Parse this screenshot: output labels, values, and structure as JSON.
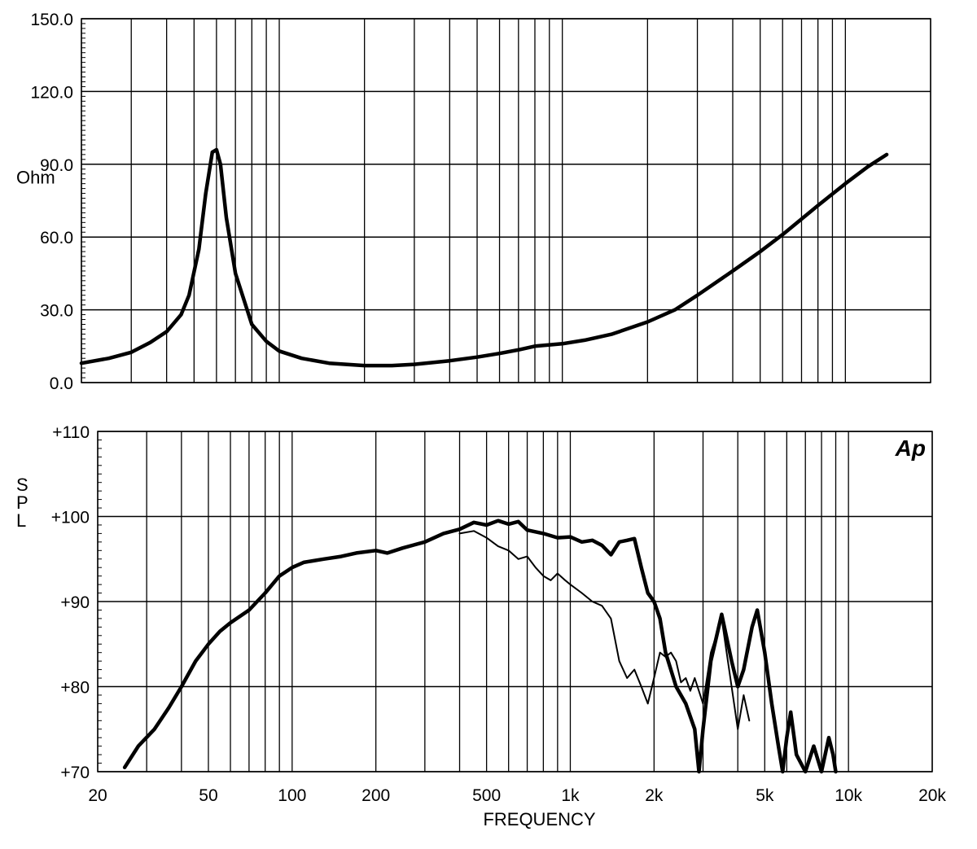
{
  "chart_data": [
    {
      "type": "line",
      "xscale": "log",
      "xlim": [
        20,
        20000
      ],
      "ylim": [
        0,
        150
      ],
      "ylabel": "Ohm",
      "grid": true,
      "y_ticks": [
        {
          "value": 0,
          "label": "0.0"
        },
        {
          "value": 30,
          "label": "30.0"
        },
        {
          "value": 60,
          "label": "60.0"
        },
        {
          "value": 90,
          "label": "90.0"
        },
        {
          "value": 120,
          "label": "120.0"
        },
        {
          "value": 150,
          "label": "150.0"
        }
      ],
      "series": [
        {
          "points": [
            [
              20,
              8
            ],
            [
              25,
              10
            ],
            [
              30,
              12.5
            ],
            [
              35,
              16.5
            ],
            [
              40,
              21
            ],
            [
              45,
              28
            ],
            [
              48,
              36
            ],
            [
              52,
              55
            ],
            [
              55,
              78
            ],
            [
              58,
              95
            ],
            [
              60,
              96
            ],
            [
              62,
              90
            ],
            [
              65,
              68
            ],
            [
              70,
              45
            ],
            [
              80,
              24
            ],
            [
              90,
              17
            ],
            [
              100,
              13
            ],
            [
              120,
              10
            ],
            [
              150,
              8
            ],
            [
              200,
              7
            ],
            [
              250,
              7
            ],
            [
              300,
              7.5
            ],
            [
              400,
              9
            ],
            [
              500,
              10.5
            ],
            [
              600,
              12
            ],
            [
              700,
              13.5
            ],
            [
              800,
              15
            ],
            [
              1000,
              16
            ],
            [
              1200,
              17.5
            ],
            [
              1500,
              20
            ],
            [
              2000,
              25
            ],
            [
              2500,
              30
            ],
            [
              3000,
              36
            ],
            [
              4000,
              46
            ],
            [
              5000,
              54
            ],
            [
              6000,
              61
            ],
            [
              8000,
              73
            ],
            [
              10000,
              82
            ],
            [
              12000,
              89
            ],
            [
              14000,
              94
            ]
          ]
        }
      ]
    },
    {
      "type": "line",
      "xscale": "log",
      "xlim": [
        20,
        20000
      ],
      "ylim": [
        70,
        110
      ],
      "xlabel": "FREQUENCY",
      "ylabel": "S P L",
      "logo": "Ap",
      "grid": true,
      "x_ticks": [
        {
          "value": 20,
          "label": "20"
        },
        {
          "value": 50,
          "label": "50"
        },
        {
          "value": 100,
          "label": "100"
        },
        {
          "value": 200,
          "label": "200"
        },
        {
          "value": 500,
          "label": "500"
        },
        {
          "value": 1000,
          "label": "1k"
        },
        {
          "value": 2000,
          "label": "2k"
        },
        {
          "value": 5000,
          "label": "5k"
        },
        {
          "value": 10000,
          "label": "10k"
        },
        {
          "value": 20000,
          "label": "20k"
        }
      ],
      "y_ticks": [
        {
          "value": 70,
          "label": "+70"
        },
        {
          "value": 80,
          "label": "+80"
        },
        {
          "value": 90,
          "label": "+90"
        },
        {
          "value": 100,
          "label": "+100"
        },
        {
          "value": 110,
          "label": "+110"
        }
      ],
      "series": [
        {
          "style": "thick",
          "points": [
            [
              25,
              70.5
            ],
            [
              28,
              73
            ],
            [
              32,
              75
            ],
            [
              36,
              77.5
            ],
            [
              40,
              80
            ],
            [
              45,
              83
            ],
            [
              50,
              85
            ],
            [
              55,
              86.5
            ],
            [
              60,
              87.5
            ],
            [
              70,
              89
            ],
            [
              80,
              91
            ],
            [
              90,
              93
            ],
            [
              100,
              94
            ],
            [
              110,
              94.6
            ],
            [
              130,
              95
            ],
            [
              150,
              95.3
            ],
            [
              170,
              95.7
            ],
            [
              200,
              96
            ],
            [
              220,
              95.7
            ],
            [
              250,
              96.3
            ],
            [
              300,
              97
            ],
            [
              350,
              98
            ],
            [
              400,
              98.5
            ],
            [
              450,
              99.3
            ],
            [
              500,
              99
            ],
            [
              550,
              99.5
            ],
            [
              600,
              99.1
            ],
            [
              650,
              99.4
            ],
            [
              700,
              98.4
            ],
            [
              800,
              98
            ],
            [
              900,
              97.5
            ],
            [
              1000,
              97.6
            ],
            [
              1100,
              97
            ],
            [
              1200,
              97.2
            ],
            [
              1300,
              96.6
            ],
            [
              1400,
              95.5
            ],
            [
              1500,
              97
            ],
            [
              1600,
              97.2
            ],
            [
              1700,
              97.4
            ],
            [
              1800,
              94
            ],
            [
              1900,
              91
            ],
            [
              2000,
              90
            ],
            [
              2100,
              88
            ],
            [
              2200,
              84
            ],
            [
              2400,
              80
            ],
            [
              2600,
              78
            ],
            [
              2800,
              75
            ],
            [
              2900,
              70
            ],
            [
              3000,
              75
            ],
            [
              3200,
              83
            ],
            [
              3500,
              88.5
            ],
            [
              3800,
              83
            ],
            [
              4000,
              80
            ],
            [
              4200,
              82
            ],
            [
              4500,
              87
            ],
            [
              4700,
              89
            ],
            [
              5000,
              84
            ],
            [
              5300,
              78
            ],
            [
              5600,
              73
            ],
            [
              5800,
              70
            ],
            [
              6000,
              74
            ],
            [
              6200,
              77
            ],
            [
              6500,
              72
            ],
            [
              7000,
              70
            ],
            [
              7500,
              73
            ],
            [
              8000,
              70
            ],
            [
              8500,
              74
            ],
            [
              8800,
              72
            ],
            [
              9000,
              70
            ]
          ]
        },
        {
          "style": "thin",
          "points": [
            [
              400,
              98
            ],
            [
              450,
              98.3
            ],
            [
              500,
              97.5
            ],
            [
              550,
              96.5
            ],
            [
              600,
              96
            ],
            [
              650,
              95
            ],
            [
              700,
              95.3
            ],
            [
              750,
              94
            ],
            [
              800,
              93
            ],
            [
              850,
              92.5
            ],
            [
              900,
              93.3
            ],
            [
              950,
              92.6
            ],
            [
              1000,
              92
            ],
            [
              1100,
              91
            ],
            [
              1200,
              90
            ],
            [
              1300,
              89.5
            ],
            [
              1400,
              88
            ],
            [
              1500,
              83
            ],
            [
              1600,
              81
            ],
            [
              1700,
              82
            ],
            [
              1800,
              80
            ],
            [
              1900,
              78
            ],
            [
              2000,
              81
            ],
            [
              2100,
              84
            ],
            [
              2200,
              83.5
            ],
            [
              2300,
              84
            ],
            [
              2400,
              83
            ],
            [
              2500,
              80.5
            ],
            [
              2600,
              81
            ],
            [
              2700,
              79.5
            ],
            [
              2800,
              81
            ],
            [
              3000,
              78
            ],
            [
              3200,
              84
            ],
            [
              3500,
              88
            ],
            [
              3800,
              80
            ],
            [
              4000,
              75
            ],
            [
              4200,
              79
            ],
            [
              4400,
              76
            ]
          ]
        }
      ]
    }
  ]
}
